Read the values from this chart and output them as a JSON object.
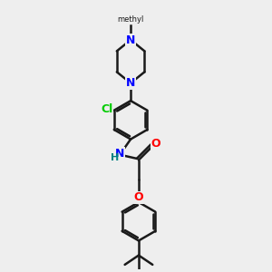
{
  "background_color": "#eeeeee",
  "bond_color": "#1a1a1a",
  "N_color": "#0000ff",
  "O_color": "#ff0000",
  "Cl_color": "#00cc00",
  "H_color": "#008080",
  "methyl_color": "#1a1a1a",
  "figsize": [
    3.0,
    3.0
  ],
  "dpi": 100,
  "xlim": [
    0,
    10
  ],
  "ylim": [
    0,
    10
  ]
}
